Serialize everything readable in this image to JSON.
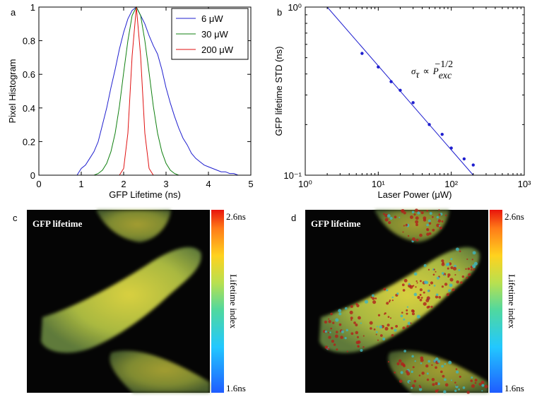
{
  "chart_data": [
    {
      "type": "line",
      "panel": "a",
      "xlabel": "GFP Lifetime (ns)",
      "ylabel": "Pixel Histogram",
      "xlim": [
        0,
        5
      ],
      "ylim": [
        0,
        1
      ],
      "xticks": [
        0,
        1,
        2,
        3,
        4,
        5
      ],
      "yticks": [
        0,
        0.2,
        0.4,
        0.6,
        0.8,
        1
      ],
      "legend": "upper right",
      "x": [
        0,
        0.1,
        0.2,
        0.3,
        0.4,
        0.5,
        0.6,
        0.7,
        0.8,
        0.9,
        1,
        1.1,
        1.2,
        1.3,
        1.4,
        1.5,
        1.6,
        1.7,
        1.8,
        1.9,
        2,
        2.1,
        2.2,
        2.3,
        2.4,
        2.5,
        2.6,
        2.7,
        2.8,
        2.9,
        3,
        3.1,
        3.2,
        3.3,
        3.4,
        3.5,
        3.6,
        3.7,
        3.8,
        3.9,
        4,
        4.1,
        4.2,
        4.3,
        4.4,
        4.5,
        4.6,
        4.7,
        4.8,
        4.9,
        5
      ],
      "series": [
        {
          "name": "6 μW",
          "color": "#1f1fcf",
          "values": [
            0,
            0,
            0,
            0,
            0,
            0,
            0,
            0,
            0,
            0,
            0.04,
            0.06,
            0.1,
            0.14,
            0.2,
            0.3,
            0.4,
            0.52,
            0.63,
            0.75,
            0.85,
            0.93,
            0.98,
            1,
            0.95,
            0.9,
            0.83,
            0.77,
            0.72,
            0.63,
            0.52,
            0.43,
            0.35,
            0.28,
            0.22,
            0.18,
            0.13,
            0.1,
            0.08,
            0.06,
            0.05,
            0.04,
            0.03,
            0.02,
            0.02,
            0.01,
            0.01,
            0,
            0,
            0,
            0
          ]
        },
        {
          "name": "30 μW",
          "color": "#108010",
          "values": [
            0,
            0,
            0,
            0,
            0,
            0,
            0,
            0,
            0,
            0,
            0,
            0,
            0,
            0,
            0.01,
            0.03,
            0.07,
            0.14,
            0.25,
            0.41,
            0.61,
            0.8,
            0.95,
            1,
            0.95,
            0.8,
            0.61,
            0.41,
            0.25,
            0.14,
            0.07,
            0.03,
            0.01,
            0,
            0,
            0,
            0,
            0,
            0,
            0,
            0,
            0,
            0,
            0,
            0,
            0,
            0,
            0,
            0,
            0,
            0
          ]
        },
        {
          "name": "200 μW",
          "color": "#e01010",
          "values": [
            0,
            0,
            0,
            0,
            0,
            0,
            0,
            0,
            0,
            0,
            0,
            0,
            0,
            0,
            0,
            0,
            0,
            0,
            0,
            0,
            0.04,
            0.25,
            0.71,
            1,
            0.71,
            0.25,
            0.04,
            0,
            0,
            0,
            0,
            0,
            0,
            0,
            0,
            0,
            0,
            0,
            0,
            0,
            0,
            0,
            0,
            0,
            0,
            0,
            0,
            0,
            0,
            0,
            0
          ]
        }
      ]
    },
    {
      "type": "scatter",
      "panel": "b",
      "xlabel": "Laser Power (μW)",
      "ylabel": "GFP lifetime STD (ns)",
      "log_x": true,
      "log_y": true,
      "xlim": [
        1,
        1000
      ],
      "ylim": [
        0.1,
        1
      ],
      "xticks": [
        {
          "value": 1,
          "label": "10⁰"
        },
        {
          "value": 10,
          "label": "10¹"
        },
        {
          "value": 100,
          "label": "10²"
        },
        {
          "value": 1000,
          "label": "10³"
        }
      ],
      "yticks": [
        {
          "value": 0.1,
          "label": "10⁻¹"
        },
        {
          "value": 1,
          "label": "10⁰"
        }
      ],
      "points": {
        "color": "#1f1fcf",
        "x": [
          6,
          10,
          15,
          20,
          30,
          50,
          75,
          100,
          150,
          200
        ],
        "values": [
          0.53,
          0.44,
          0.36,
          0.32,
          0.27,
          0.2,
          0.175,
          0.145,
          0.125,
          0.115
        ]
      },
      "fit": {
        "color": "#1f1fcf",
        "x": [
          2,
          200
        ],
        "values": [
          1,
          0.1
        ]
      },
      "annotation": {
        "symbol": "σ",
        "symbol_sub": "τ",
        "relation": "∝",
        "base": "P",
        "base_sub": "exc",
        "exponent": "−1/2"
      }
    },
    {
      "type": "image",
      "panel": "c",
      "overlay": "GFP lifetime",
      "speckle": false,
      "colorbar": {
        "label": "Lifetime index",
        "lim": [
          1.6,
          2.6
        ],
        "ticks": [
          {
            "value": 2.6,
            "label": "2.6ns"
          },
          {
            "value": 1.6,
            "label": "1.6ns"
          }
        ]
      }
    },
    {
      "type": "image",
      "panel": "d",
      "overlay": "GFP lifetime",
      "speckle": true,
      "colorbar": {
        "label": "Lifetime index",
        "lim": [
          1.6,
          2.6
        ],
        "ticks": [
          {
            "value": 2.6,
            "label": "2.6ns"
          },
          {
            "value": 1.6,
            "label": "1.6ns"
          }
        ]
      }
    }
  ]
}
